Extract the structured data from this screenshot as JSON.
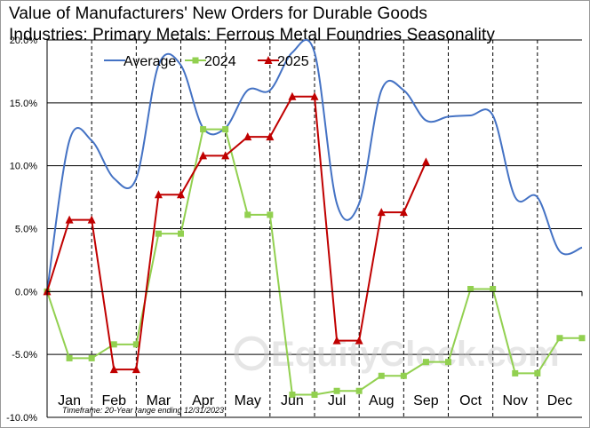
{
  "title_lines": [
    "Value of Manufacturers'  New Orders for Durable Goods",
    "Industries: Primary Metals: Ferrous Metal Foundries Seasonality"
  ],
  "footnote": "Timeframe: 20-Year range ending 12/31/2023",
  "watermark": "EquityClock.com",
  "chart_data": {
    "type": "line",
    "title": "Value of Manufacturers'  New Orders for Durable Goods Industries: Primary Metals: Ferrous Metal Foundries Seasonality",
    "xlabel": "",
    "ylabel": "",
    "categories": [
      "Jan",
      "Feb",
      "Mar",
      "Apr",
      "May",
      "Jun",
      "Jul",
      "Aug",
      "Sep",
      "Oct",
      "Nov",
      "Dec"
    ],
    "ylim": [
      -10,
      20
    ],
    "yticks": [
      -10,
      -5,
      0,
      5,
      10,
      15,
      20
    ],
    "ytick_labels": [
      "-10.0%",
      "-5.0%",
      "0.0%",
      "5.0%",
      "10.0%",
      "15.0%",
      "20.0%"
    ],
    "grid": "horizontal solid lines, vertical dashed month dividers",
    "legend_position": "top",
    "series": [
      {
        "name": "Average",
        "color": "#4472c4",
        "style": "smooth",
        "x": [
          0,
          0.5,
          1.0,
          1.5,
          2.0,
          2.5,
          3.0,
          3.5,
          4.0,
          4.5,
          5.0,
          5.5,
          6.0,
          6.5,
          7.0,
          7.5,
          8.0,
          8.5,
          9.0,
          9.5,
          10.0,
          10.5,
          11.0,
          11.5,
          12.0
        ],
        "values": [
          0,
          12.0,
          12.0,
          9.0,
          9.0,
          18.0,
          18.0,
          13.0,
          13.0,
          16.0,
          16.0,
          19.0,
          19.0,
          7.0,
          7.0,
          16.0,
          16.0,
          13.6,
          13.9,
          14.0,
          14.0,
          7.5,
          7.5,
          3.2,
          3.5
        ]
      },
      {
        "name": "2024",
        "color": "#92d050",
        "marker": "square",
        "x": [
          0,
          0.5,
          1.0,
          1.5,
          2.0,
          2.5,
          3.0,
          3.5,
          4.0,
          4.5,
          5.0,
          5.5,
          6.0,
          6.5,
          7.0,
          7.5,
          8.0,
          8.5,
          9.0,
          9.5,
          10.0,
          10.5,
          11.0,
          11.5,
          12.0
        ],
        "values": [
          0,
          -5.3,
          -5.3,
          -4.2,
          -4.2,
          4.6,
          4.6,
          12.9,
          12.9,
          6.1,
          6.1,
          -8.2,
          -8.2,
          -7.9,
          -7.9,
          -6.7,
          -6.7,
          -5.6,
          -5.6,
          0.2,
          0.2,
          -6.5,
          -6.5,
          -3.7,
          -3.7
        ]
      },
      {
        "name": "2025",
        "color": "#c00000",
        "marker": "triangle",
        "x": [
          0,
          0.5,
          1.0,
          1.5,
          2.0,
          2.5,
          3.0,
          3.5,
          4.0,
          4.5,
          5.0,
          5.5,
          6.0,
          6.5,
          7.0,
          7.5,
          8.0,
          8.5
        ],
        "values": [
          0,
          5.7,
          5.7,
          -6.2,
          -6.2,
          7.7,
          7.7,
          10.8,
          10.8,
          12.3,
          12.3,
          15.5,
          15.5,
          -3.9,
          -3.9,
          6.3,
          6.3,
          10.3
        ]
      }
    ]
  }
}
